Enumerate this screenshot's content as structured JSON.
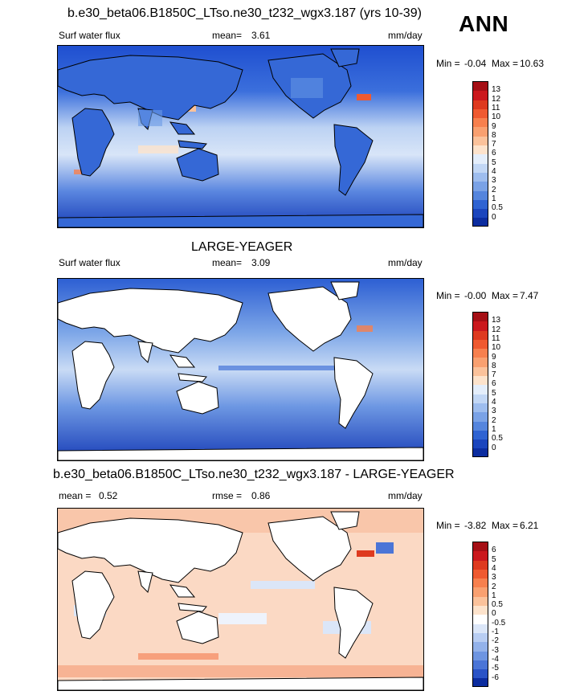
{
  "header": {
    "title": "b.e30_beta06.B1850C_LTso.ne30_t232_wgx3.187 (yrs 10-39)",
    "season": "ANN"
  },
  "panels": [
    {
      "id": "top",
      "variable": "Surf water flux",
      "mean_label": "mean=",
      "mean_value": "3.61",
      "units": "mm/day",
      "min_label": "Min =",
      "min_value": "-0.04",
      "max_label": "Max =",
      "max_value": "10.63",
      "land_filled": true
    },
    {
      "id": "mid",
      "heading": "LARGE-YEAGER",
      "variable": "Surf water flux",
      "mean_label": "mean=",
      "mean_value": "3.09",
      "units": "mm/day",
      "min_label": "Min =",
      "min_value": "-0.00",
      "max_label": "Max =",
      "max_value": "7.47",
      "land_filled": false
    },
    {
      "id": "diff",
      "heading": "b.e30_beta06.B1850C_LTso.ne30_t232_wgx3.187 - LARGE-YEAGER",
      "mean_label": "mean =",
      "mean_value": "0.52",
      "rmse_label": "rmse =",
      "rmse_value": "0.86",
      "units": "mm/day",
      "min_label": "Min =",
      "min_value": "-3.82",
      "max_label": "Max =",
      "max_value": "6.21",
      "land_filled": false
    }
  ],
  "colorbars": {
    "field": {
      "ticks": [
        "13",
        "12",
        "11",
        "10",
        "9",
        "8",
        "7",
        "6",
        "5",
        "4",
        "3",
        "2",
        "1",
        "0.5",
        "0"
      ],
      "colors": [
        "#a50f15",
        "#cb181d",
        "#de3a1f",
        "#ef5a30",
        "#f7804e",
        "#f9a070",
        "#fbc29b",
        "#fde3cc",
        "#e4eefb",
        "#c2d7f5",
        "#9ebdee",
        "#7aa2e6",
        "#5585dd",
        "#2f63d2",
        "#1b45bd",
        "#0c2da0"
      ]
    },
    "diff": {
      "ticks": [
        "6",
        "5",
        "4",
        "3",
        "2",
        "1",
        "0.5",
        "0",
        "-0.5",
        "-1",
        "-2",
        "-3",
        "-4",
        "-5",
        "-6"
      ],
      "colors": [
        "#a50f15",
        "#cb181d",
        "#de3a1f",
        "#ef5a30",
        "#f7804e",
        "#f9a070",
        "#fbc29b",
        "#fde3cc",
        "#ffffff",
        "#dbe6f8",
        "#b8cdf2",
        "#93b2ea",
        "#6e95e1",
        "#4b75d7",
        "#2a53c7",
        "#0c2da0"
      ]
    }
  }
}
